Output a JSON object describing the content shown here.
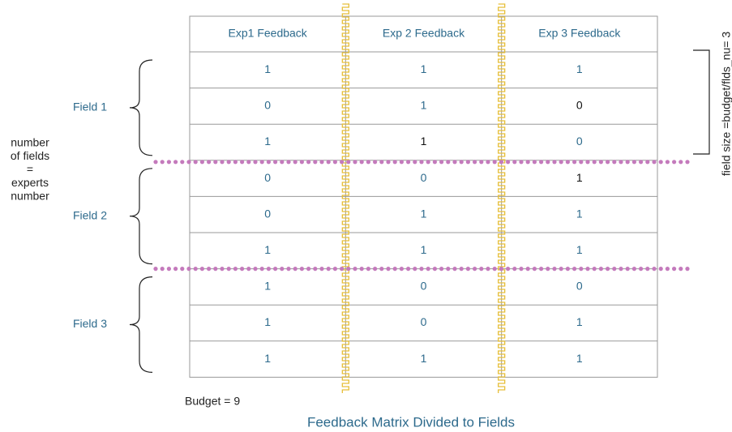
{
  "header": {
    "columns": [
      "Exp1 Feedback",
      "Exp 2 Feedback",
      "Exp 3 Feedback"
    ]
  },
  "table": {
    "rows": [
      [
        1,
        1,
        1
      ],
      [
        0,
        1,
        0
      ],
      [
        1,
        1,
        0
      ],
      [
        0,
        0,
        1
      ],
      [
        0,
        1,
        1
      ],
      [
        1,
        1,
        1
      ],
      [
        1,
        0,
        0
      ],
      [
        1,
        0,
        1
      ],
      [
        1,
        1,
        1
      ]
    ],
    "text_colors": [
      [
        "#2d6a8c",
        "#2d6a8c",
        "#2d6a8c"
      ],
      [
        "#2d6a8c",
        "#2d6a8c",
        "#111111"
      ],
      [
        "#2d6a8c",
        "#111111",
        "#2d6a8c"
      ],
      [
        "#2d6a8c",
        "#2d6a8c",
        "#111111"
      ],
      [
        "#2d6a8c",
        "#2d6a8c",
        "#2d6a8c"
      ],
      [
        "#2d6a8c",
        "#2d6a8c",
        "#2d6a8c"
      ],
      [
        "#2d6a8c",
        "#2d6a8c",
        "#2d6a8c"
      ],
      [
        "#2d6a8c",
        "#2d6a8c",
        "#2d6a8c"
      ],
      [
        "#2d6a8c",
        "#2d6a8c",
        "#2d6a8c"
      ]
    ]
  },
  "fields": [
    "Field 1",
    "Field 2",
    "Field 3"
  ],
  "left_note": [
    "number",
    "of fields",
    "=",
    "experts",
    "number"
  ],
  "right_note": "field size =budget/flds_nu= 3",
  "budget": "Budget = 9",
  "caption": "Feedback Matrix Divided to Fields"
}
